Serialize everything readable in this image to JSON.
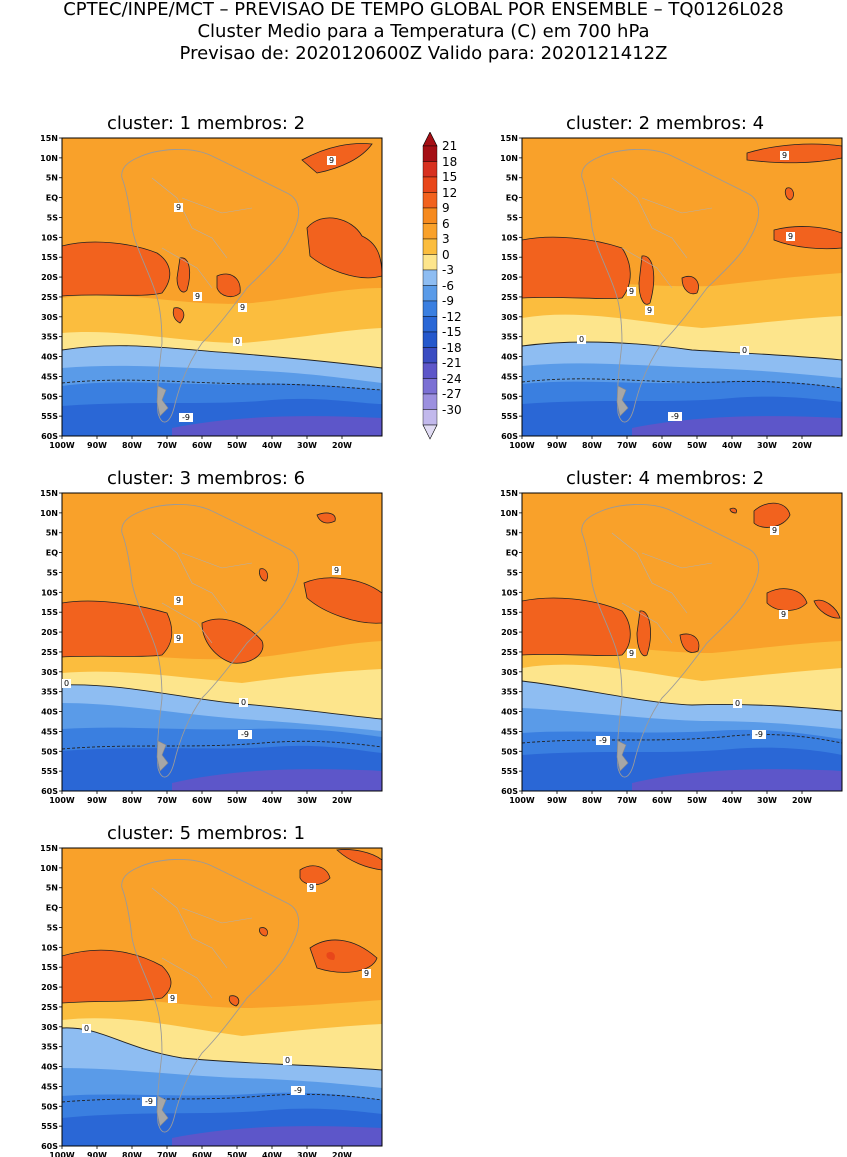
{
  "header": {
    "line1": "CPTEC/INPE/MCT – PREVISAO DE TEMPO GLOBAL POR ENSEMBLE – TQ0126L028",
    "line2": "Cluster Medio para a Temperatura (C) em 700 hPa",
    "line3": "Previsao de: 2020120600Z   Valido para: 2020121412Z"
  },
  "lat_ticks": [
    "15N",
    "10N",
    "5N",
    "EQ",
    "5S",
    "10S",
    "15S",
    "20S",
    "25S",
    "30S",
    "35S",
    "40S",
    "45S",
    "50S",
    "55S",
    "60S"
  ],
  "lon_ticks": [
    "100W",
    "90W",
    "80W",
    "70W",
    "60W",
    "50W",
    "40W",
    "30W",
    "20W"
  ],
  "colorbar": {
    "labels": [
      "21",
      "18",
      "15",
      "12",
      "9",
      "6",
      "3",
      "0",
      "-3",
      "-6",
      "-9",
      "-12",
      "-15",
      "-18",
      "-21",
      "-24",
      "-27",
      "-30"
    ],
    "colors": [
      "#a50f15",
      "#d7301f",
      "#e8461a",
      "#f2621e",
      "#f68a1e",
      "#f9a12a",
      "#fbbd3e",
      "#fde58c",
      "#8ebdf2",
      "#5a9be8",
      "#3a7fe0",
      "#2a67d6",
      "#2458cc",
      "#3a4cc2",
      "#5d56c9",
      "#7b70d4",
      "#9c90df",
      "#c2b9ec"
    ],
    "top_color": "#a50f15",
    "bottom_color": "#e1dcf4"
  },
  "clusters": [
    {
      "title": "cluster: 1   membros: 2",
      "contour_labels": [
        "9",
        "9",
        "9",
        "9",
        "0",
        "-9"
      ]
    },
    {
      "title": "cluster: 2   membros: 4",
      "contour_labels": [
        "9",
        "9",
        "9",
        "9",
        "0",
        "0",
        "-9"
      ]
    },
    {
      "title": "cluster: 3   membros: 6",
      "contour_labels": [
        "9",
        "9",
        "9",
        "0",
        "0",
        "-9"
      ]
    },
    {
      "title": "cluster: 4   membros: 2",
      "contour_labels": [
        "9",
        "9",
        "9",
        "0",
        "-9",
        "-9"
      ]
    },
    {
      "title": "cluster: 5   membros: 1",
      "contour_labels": [
        "9",
        "9",
        "9",
        "0",
        "0",
        "-9",
        "-9"
      ]
    }
  ]
}
